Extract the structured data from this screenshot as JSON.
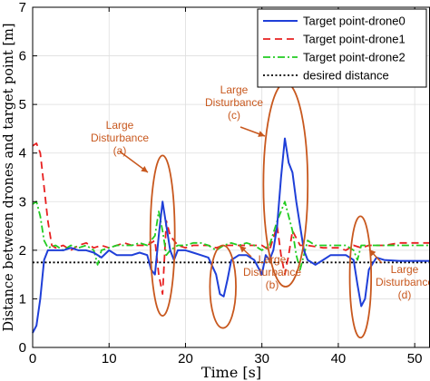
{
  "chart_data": {
    "type": "line",
    "xlabel": "Time [s]",
    "ylabel": "Distance between drones and target point [m]",
    "xlim": [
      0,
      52
    ],
    "ylim": [
      0,
      7
    ],
    "xticks": [
      "0",
      "10",
      "20",
      "30",
      "40",
      "50"
    ],
    "yticks": [
      "0",
      "1",
      "2",
      "3",
      "4",
      "5",
      "6",
      "7"
    ],
    "legend_position": "top-right",
    "series": [
      {
        "name": "Target point-drone0",
        "color": "#1f3fd8",
        "style": "solid",
        "points": [
          [
            0,
            0.3
          ],
          [
            0.5,
            0.45
          ],
          [
            1,
            1.0
          ],
          [
            1.5,
            1.8
          ],
          [
            2,
            2.0
          ],
          [
            3,
            2.0
          ],
          [
            4,
            2.0
          ],
          [
            5,
            2.05
          ],
          [
            6,
            2.0
          ],
          [
            7,
            2.0
          ],
          [
            8,
            1.95
          ],
          [
            9,
            1.85
          ],
          [
            10,
            2.0
          ],
          [
            11,
            1.9
          ],
          [
            12,
            1.9
          ],
          [
            13,
            1.9
          ],
          [
            14,
            1.95
          ],
          [
            15,
            1.9
          ],
          [
            15.5,
            1.6
          ],
          [
            16,
            1.5
          ],
          [
            16.5,
            2.3
          ],
          [
            17,
            3.0
          ],
          [
            17.5,
            2.5
          ],
          [
            18,
            2.0
          ],
          [
            18.5,
            1.8
          ],
          [
            19,
            2.0
          ],
          [
            20,
            2.0
          ],
          [
            21,
            1.95
          ],
          [
            22,
            1.9
          ],
          [
            23,
            1.85
          ],
          [
            24,
            1.5
          ],
          [
            24.5,
            1.1
          ],
          [
            25,
            1.05
          ],
          [
            25.5,
            1.4
          ],
          [
            26,
            1.8
          ],
          [
            27,
            1.9
          ],
          [
            28,
            1.9
          ],
          [
            29,
            1.8
          ],
          [
            30,
            1.5
          ],
          [
            30.5,
            1.9
          ],
          [
            31,
            1.8
          ],
          [
            31.5,
            2.0
          ],
          [
            32,
            2.5
          ],
          [
            32.5,
            3.5
          ],
          [
            33,
            4.3
          ],
          [
            33.5,
            3.8
          ],
          [
            34,
            3.6
          ],
          [
            34.5,
            3.0
          ],
          [
            35,
            2.5
          ],
          [
            35.5,
            2.0
          ],
          [
            36,
            1.8
          ],
          [
            37,
            1.7
          ],
          [
            38,
            1.8
          ],
          [
            39,
            1.9
          ],
          [
            40,
            1.9
          ],
          [
            41,
            1.9
          ],
          [
            42,
            1.8
          ],
          [
            42.5,
            1.3
          ],
          [
            43,
            0.85
          ],
          [
            43.5,
            1.0
          ],
          [
            44,
            1.6
          ],
          [
            45,
            1.85
          ],
          [
            46,
            1.8
          ],
          [
            48,
            1.78
          ],
          [
            52,
            1.78
          ]
        ]
      },
      {
        "name": "Target point-drone1",
        "color": "#e82020",
        "style": "dashed",
        "points": [
          [
            0,
            4.15
          ],
          [
            0.5,
            4.2
          ],
          [
            1,
            4.0
          ],
          [
            1.5,
            3.3
          ],
          [
            2,
            2.6
          ],
          [
            2.5,
            2.1
          ],
          [
            3,
            2.05
          ],
          [
            4,
            2.1
          ],
          [
            5,
            2.0
          ],
          [
            6,
            2.1
          ],
          [
            7,
            2.15
          ],
          [
            8,
            2.05
          ],
          [
            9,
            2.1
          ],
          [
            10,
            2.05
          ],
          [
            11,
            2.1
          ],
          [
            12,
            2.15
          ],
          [
            13,
            2.1
          ],
          [
            14,
            2.1
          ],
          [
            15,
            2.1
          ],
          [
            16,
            2.2
          ],
          [
            16.5,
            1.5
          ],
          [
            17,
            1.1
          ],
          [
            17.5,
            2.6
          ],
          [
            18,
            2.3
          ],
          [
            19,
            2.1
          ],
          [
            20,
            2.05
          ],
          [
            21,
            2.1
          ],
          [
            22,
            2.1
          ],
          [
            23,
            2.1
          ],
          [
            24,
            2.05
          ],
          [
            25,
            2.1
          ],
          [
            26,
            2.1
          ],
          [
            27,
            2.1
          ],
          [
            28,
            2.1
          ],
          [
            29,
            2.1
          ],
          [
            30,
            2.1
          ],
          [
            31,
            2.0
          ],
          [
            32,
            2.5
          ],
          [
            32.5,
            1.9
          ],
          [
            33,
            1.5
          ],
          [
            33.5,
            1.9
          ],
          [
            34,
            2.4
          ],
          [
            35,
            2.1
          ],
          [
            36,
            2.1
          ],
          [
            38,
            2.05
          ],
          [
            40,
            2.05
          ],
          [
            41,
            2.0
          ],
          [
            42,
            2.1
          ],
          [
            43,
            2.05
          ],
          [
            44,
            2.1
          ],
          [
            46,
            2.1
          ],
          [
            48,
            2.15
          ],
          [
            52,
            2.15
          ]
        ]
      },
      {
        "name": "Target point-drone2",
        "color": "#22cc22",
        "style": "dashdot",
        "points": [
          [
            0,
            2.95
          ],
          [
            0.5,
            3.0
          ],
          [
            1,
            2.7
          ],
          [
            1.5,
            2.2
          ],
          [
            2,
            2.05
          ],
          [
            3,
            2.1
          ],
          [
            4,
            2.0
          ],
          [
            5,
            2.1
          ],
          [
            6,
            2.05
          ],
          [
            7,
            2.1
          ],
          [
            8,
            2.0
          ],
          [
            8.5,
            1.7
          ],
          [
            9,
            2.0
          ],
          [
            10,
            2.05
          ],
          [
            11,
            2.1
          ],
          [
            12,
            2.1
          ],
          [
            13,
            2.1
          ],
          [
            14,
            2.15
          ],
          [
            15,
            2.1
          ],
          [
            16,
            2.3
          ],
          [
            16.5,
            2.8
          ],
          [
            17,
            2.4
          ],
          [
            17.5,
            1.9
          ],
          [
            18,
            2.0
          ],
          [
            19,
            2.1
          ],
          [
            20,
            2.1
          ],
          [
            21,
            2.15
          ],
          [
            22,
            2.15
          ],
          [
            23,
            2.1
          ],
          [
            24,
            2.0
          ],
          [
            25,
            2.1
          ],
          [
            26,
            2.15
          ],
          [
            27,
            2.1
          ],
          [
            28,
            2.15
          ],
          [
            29,
            2.1
          ],
          [
            30,
            2.0
          ],
          [
            31,
            2.1
          ],
          [
            32,
            2.6
          ],
          [
            33,
            3.0
          ],
          [
            34,
            2.4
          ],
          [
            34.5,
            1.9
          ],
          [
            35,
            1.6
          ],
          [
            35.5,
            1.9
          ],
          [
            36,
            2.2
          ],
          [
            37,
            2.1
          ],
          [
            38,
            2.1
          ],
          [
            40,
            2.1
          ],
          [
            41,
            2.1
          ],
          [
            42,
            2.0
          ],
          [
            42.5,
            1.8
          ],
          [
            43,
            2.1
          ],
          [
            44,
            2.1
          ],
          [
            46,
            2.1
          ],
          [
            48,
            2.1
          ],
          [
            52,
            2.1
          ]
        ]
      },
      {
        "name": "desired distance",
        "color": "#000000",
        "style": "dotted",
        "points": [
          [
            0,
            1.75
          ],
          [
            52,
            1.75
          ]
        ]
      }
    ],
    "annotations": [
      {
        "label": [
          "Large",
          "Disturbance",
          "(a)"
        ],
        "ellipse": {
          "cx": 17,
          "cy": 2.3,
          "rx": 1.6,
          "ry": 1.65
        }
      },
      {
        "label": [
          "Large",
          "Disturbance",
          "(b)"
        ],
        "ellipse": {
          "cx": 24.9,
          "cy": 1.25,
          "rx": 1.7,
          "ry": 0.85
        }
      },
      {
        "label": [
          "Large",
          "Disturbance",
          "(c)"
        ],
        "ellipse": {
          "cx": 33.1,
          "cy": 3.35,
          "rx": 2.9,
          "ry": 2.1
        }
      },
      {
        "label": [
          "Large",
          "Disturbance",
          "(d)"
        ],
        "ellipse": {
          "cx": 42.9,
          "cy": 1.45,
          "rx": 1.4,
          "ry": 1.25
        }
      }
    ]
  }
}
